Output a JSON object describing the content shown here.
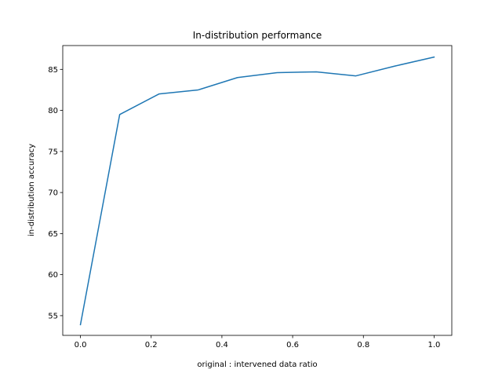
{
  "chart_data": {
    "type": "line",
    "title": "In-distribution performance",
    "xlabel": "original : intervened data ratio",
    "ylabel": "in-distribution accuracy",
    "xlim": [
      -0.05,
      1.05
    ],
    "ylim": [
      52.6,
      87.9
    ],
    "xticks": [
      0.0,
      0.2,
      0.4,
      0.6,
      0.8,
      1.0
    ],
    "xtick_labels": [
      "0.0",
      "0.2",
      "0.4",
      "0.6",
      "0.8",
      "1.0"
    ],
    "yticks": [
      55,
      60,
      65,
      70,
      75,
      80,
      85
    ],
    "ytick_labels": [
      "55",
      "60",
      "65",
      "70",
      "75",
      "80",
      "85"
    ],
    "grid": false,
    "series": [
      {
        "color": "#1f77b4",
        "x": [
          0.0,
          0.111,
          0.222,
          0.333,
          0.444,
          0.556,
          0.667,
          0.778,
          0.889,
          1.0
        ],
        "y": [
          53.9,
          79.5,
          82.0,
          82.5,
          84.0,
          84.6,
          84.7,
          84.2,
          85.4,
          86.5
        ]
      }
    ]
  }
}
